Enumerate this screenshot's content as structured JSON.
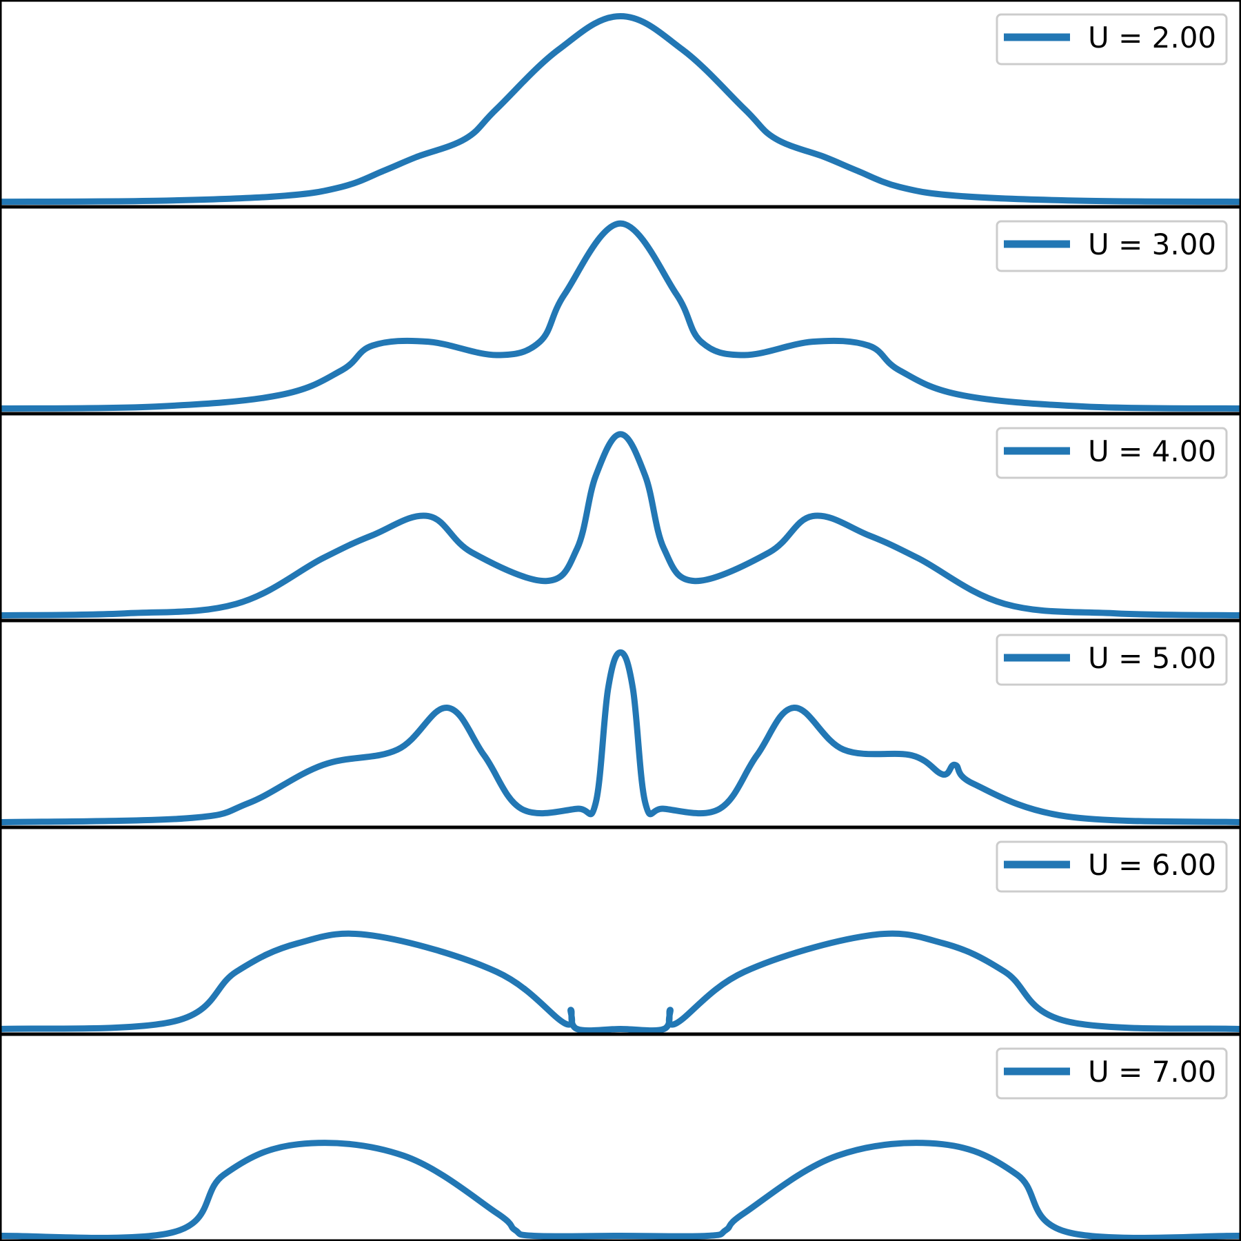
{
  "colors": {
    "series": "#2277b4",
    "frame": "#000000",
    "legend_border": "#cccccc"
  },
  "chart_data": [
    {
      "type": "line",
      "legend": "U = 2.00",
      "legend_position": "top-right",
      "x": [
        -1.0,
        -0.75,
        -0.55,
        -0.45,
        -0.38,
        -0.33,
        -0.25,
        -0.2,
        -0.1,
        0.0,
        0.1,
        0.2,
        0.25,
        0.33,
        0.38,
        0.45,
        0.55,
        0.75,
        1.0
      ],
      "y": [
        0.0,
        0.005,
        0.03,
        0.08,
        0.17,
        0.24,
        0.34,
        0.5,
        0.82,
        1.0,
        0.82,
        0.5,
        0.34,
        0.24,
        0.17,
        0.08,
        0.03,
        0.005,
        0.0
      ],
      "ylim": [
        -0.02,
        1.08
      ]
    },
    {
      "type": "line",
      "legend": "U = 3.00",
      "legend_position": "top-right",
      "x": [
        -1.0,
        -0.75,
        -0.55,
        -0.45,
        -0.4,
        -0.31,
        -0.2,
        -0.13,
        -0.09,
        0.0,
        0.09,
        0.13,
        0.2,
        0.31,
        0.4,
        0.45,
        0.55,
        0.75,
        1.0
      ],
      "y": [
        0.0,
        0.01,
        0.07,
        0.2,
        0.33,
        0.35,
        0.28,
        0.35,
        0.6,
        0.97,
        0.6,
        0.35,
        0.28,
        0.35,
        0.33,
        0.2,
        0.07,
        0.01,
        0.0
      ],
      "ylim": [
        -0.02,
        1.05
      ]
    },
    {
      "type": "line",
      "legend": "U = 4.00",
      "legend_position": "top-right",
      "x": [
        -1.0,
        -0.8,
        -0.62,
        -0.48,
        -0.4,
        -0.31,
        -0.24,
        -0.12,
        -0.07,
        -0.04,
        0.0,
        0.04,
        0.07,
        0.12,
        0.24,
        0.31,
        0.4,
        0.48,
        0.62,
        0.8,
        1.0
      ],
      "y": [
        0.0,
        0.01,
        0.06,
        0.3,
        0.42,
        0.52,
        0.33,
        0.18,
        0.35,
        0.73,
        0.95,
        0.73,
        0.35,
        0.18,
        0.33,
        0.52,
        0.42,
        0.3,
        0.06,
        0.01,
        0.0
      ],
      "ylim": [
        -0.02,
        1.05
      ]
    },
    {
      "type": "line",
      "legend": "U = 5.00",
      "legend_position": "top-right",
      "x": [
        -1.0,
        -0.7,
        -0.6,
        -0.48,
        -0.36,
        -0.28,
        -0.22,
        -0.16,
        -0.07,
        -0.04,
        -0.02,
        0.0,
        0.02,
        0.04,
        0.07,
        0.16,
        0.22,
        0.28,
        0.36,
        0.47,
        0.52,
        0.54,
        0.57,
        0.72,
        1.0
      ],
      "y": [
        0.0,
        0.02,
        0.1,
        0.3,
        0.38,
        0.6,
        0.35,
        0.07,
        0.07,
        0.1,
        0.7,
        0.89,
        0.7,
        0.1,
        0.07,
        0.07,
        0.35,
        0.6,
        0.38,
        0.35,
        0.25,
        0.3,
        0.2,
        0.03,
        0.0
      ],
      "ylim": [
        -0.02,
        1.05
      ]
    },
    {
      "type": "line",
      "legend": "U = 6.00",
      "legend_position": "top-right",
      "x": [
        -1.0,
        -0.72,
        -0.62,
        -0.52,
        -0.4,
        -0.2,
        -0.09,
        -0.08,
        -0.07,
        0.0,
        0.07,
        0.08,
        0.09,
        0.2,
        0.4,
        0.52,
        0.62,
        0.72,
        1.0
      ],
      "y": [
        0.0,
        0.04,
        0.3,
        0.45,
        0.49,
        0.3,
        0.03,
        0.1,
        0.0,
        0.0,
        0.0,
        0.1,
        0.03,
        0.3,
        0.49,
        0.45,
        0.3,
        0.04,
        0.0
      ],
      "ylim": [
        -0.02,
        1.05
      ]
    },
    {
      "type": "line",
      "legend": "U = 7.00",
      "legend_position": "top-right",
      "x": [
        -1.0,
        -0.72,
        -0.64,
        -0.52,
        -0.35,
        -0.2,
        -0.17,
        -0.14,
        0.0,
        0.14,
        0.17,
        0.2,
        0.35,
        0.52,
        0.64,
        0.72,
        1.0
      ],
      "y": [
        0.0,
        0.02,
        0.32,
        0.48,
        0.42,
        0.12,
        0.03,
        0.0,
        0.0,
        0.0,
        0.03,
        0.12,
        0.42,
        0.48,
        0.32,
        0.02,
        0.0
      ],
      "ylim": [
        -0.02,
        1.05
      ]
    }
  ]
}
